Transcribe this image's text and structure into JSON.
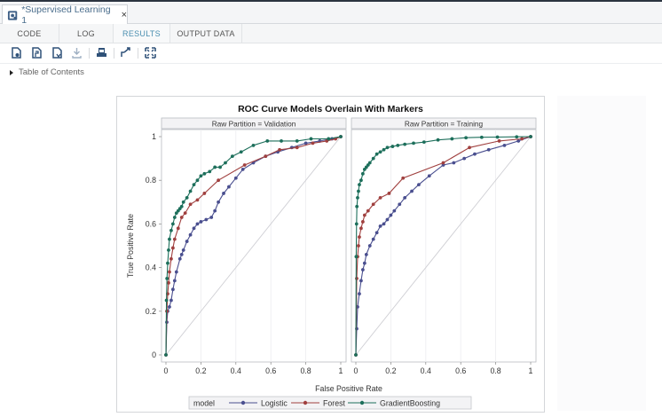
{
  "window": {
    "doc_tab": {
      "title": "*Supervised Learning 1",
      "icon": "flow-document-icon",
      "close": "×"
    }
  },
  "subtabs": [
    {
      "label": "CODE",
      "active": false
    },
    {
      "label": "LOG",
      "active": false
    },
    {
      "label": "RESULTS",
      "active": true
    },
    {
      "label": "OUTPUT DATA",
      "active": false
    }
  ],
  "toolbar": {
    "icons": [
      "download-html-icon",
      "download-pdf-icon",
      "download-word-icon",
      "download-icon",
      "print-icon",
      "expand-link-icon",
      "maximize-icon"
    ]
  },
  "toc": {
    "label": "Table of Contents"
  },
  "colors": {
    "logistic": "#4a4f8f",
    "forest": "#a0403f",
    "gradient_boosting": "#1d6f5b",
    "accent_tab": "#4b8fb0",
    "diagonal": "#cfcfd4"
  },
  "chart_data": {
    "type": "line",
    "title": "ROC Curve Models Overlain With Markers",
    "xlabel": "False Positive Rate",
    "ylabel": "True Positive Rate",
    "xlim": [
      0,
      1
    ],
    "ylim": [
      0,
      1
    ],
    "xticks": [
      "0",
      "0.2",
      "0.4",
      "0.6",
      "0.8",
      "1"
    ],
    "yticks": [
      "0",
      "0.2",
      "0.4",
      "0.6",
      "0.8",
      "1"
    ],
    "grid": "vertical",
    "legend": {
      "title": "model",
      "position": "bottom",
      "entries": [
        "Logistic",
        "Forest",
        "GradientBoosting"
      ]
    },
    "reference_line": {
      "from": [
        0,
        0
      ],
      "to": [
        1,
        1
      ]
    },
    "panels": [
      {
        "header": "Raw Partition = Validation",
        "series": [
          {
            "name": "Logistic",
            "x": [
              0,
              0.005,
              0.01,
              0.02,
              0.03,
              0.04,
              0.05,
              0.06,
              0.08,
              0.09,
              0.1,
              0.12,
              0.14,
              0.16,
              0.18,
              0.2,
              0.23,
              0.26,
              0.28,
              0.3,
              0.33,
              0.36,
              0.4,
              0.44,
              0.5,
              0.57,
              0.64,
              0.72,
              0.8,
              0.88,
              0.95,
              1
            ],
            "y": [
              0,
              0.15,
              0.2,
              0.22,
              0.25,
              0.3,
              0.34,
              0.38,
              0.44,
              0.46,
              0.48,
              0.52,
              0.55,
              0.58,
              0.6,
              0.61,
              0.62,
              0.63,
              0.66,
              0.7,
              0.74,
              0.77,
              0.81,
              0.85,
              0.88,
              0.91,
              0.93,
              0.95,
              0.97,
              0.98,
              0.99,
              1
            ]
          },
          {
            "name": "Forest",
            "x": [
              0,
              0.005,
              0.01,
              0.015,
              0.02,
              0.03,
              0.04,
              0.05,
              0.07,
              0.09,
              0.11,
              0.14,
              0.18,
              0.22,
              0.3,
              0.45,
              0.57,
              0.65,
              0.75,
              0.84,
              0.92,
              0.97,
              1
            ],
            "y": [
              0,
              0.2,
              0.28,
              0.33,
              0.38,
              0.44,
              0.49,
              0.53,
              0.58,
              0.63,
              0.65,
              0.69,
              0.71,
              0.74,
              0.8,
              0.87,
              0.91,
              0.94,
              0.95,
              0.97,
              0.98,
              0.99,
              1
            ]
          },
          {
            "name": "GradientBoosting",
            "x": [
              0,
              0.003,
              0.006,
              0.01,
              0.015,
              0.02,
              0.03,
              0.04,
              0.05,
              0.06,
              0.07,
              0.08,
              0.09,
              0.1,
              0.12,
              0.14,
              0.16,
              0.18,
              0.2,
              0.22,
              0.25,
              0.28,
              0.31,
              0.34,
              0.38,
              0.43,
              0.5,
              0.58,
              0.66,
              0.75,
              0.83,
              0.93,
              1
            ],
            "y": [
              0,
              0.25,
              0.35,
              0.42,
              0.48,
              0.53,
              0.57,
              0.6,
              0.63,
              0.65,
              0.66,
              0.67,
              0.68,
              0.7,
              0.72,
              0.75,
              0.78,
              0.8,
              0.82,
              0.83,
              0.84,
              0.86,
              0.86,
              0.88,
              0.91,
              0.93,
              0.96,
              0.98,
              0.98,
              0.98,
              0.99,
              0.99,
              1
            ]
          }
        ]
      },
      {
        "header": "Raw Partition = Training",
        "series": [
          {
            "name": "Logistic",
            "x": [
              0,
              0.005,
              0.01,
              0.02,
              0.03,
              0.04,
              0.05,
              0.06,
              0.08,
              0.1,
              0.12,
              0.14,
              0.16,
              0.18,
              0.2,
              0.22,
              0.25,
              0.28,
              0.32,
              0.36,
              0.42,
              0.5,
              0.56,
              0.62,
              0.68,
              0.76,
              0.85,
              0.93,
              1
            ],
            "y": [
              0,
              0.12,
              0.22,
              0.28,
              0.34,
              0.39,
              0.42,
              0.46,
              0.5,
              0.53,
              0.56,
              0.59,
              0.6,
              0.62,
              0.64,
              0.66,
              0.69,
              0.72,
              0.75,
              0.78,
              0.82,
              0.87,
              0.88,
              0.9,
              0.92,
              0.94,
              0.96,
              0.98,
              1
            ]
          },
          {
            "name": "Forest",
            "x": [
              0,
              0.005,
              0.01,
              0.015,
              0.02,
              0.03,
              0.04,
              0.05,
              0.07,
              0.1,
              0.14,
              0.19,
              0.27,
              0.5,
              0.65,
              0.82,
              0.95,
              1
            ],
            "y": [
              0,
              0.35,
              0.45,
              0.5,
              0.54,
              0.58,
              0.61,
              0.64,
              0.66,
              0.69,
              0.72,
              0.74,
              0.81,
              0.88,
              0.95,
              0.98,
              0.99,
              1
            ]
          },
          {
            "name": "GradientBoosting",
            "x": [
              0,
              0.002,
              0.004,
              0.006,
              0.01,
              0.015,
              0.02,
              0.03,
              0.04,
              0.05,
              0.06,
              0.07,
              0.08,
              0.1,
              0.12,
              0.14,
              0.16,
              0.18,
              0.21,
              0.24,
              0.28,
              0.33,
              0.39,
              0.47,
              0.55,
              0.63,
              0.72,
              0.81,
              0.92,
              1
            ],
            "y": [
              0,
              0.45,
              0.6,
              0.68,
              0.72,
              0.75,
              0.78,
              0.8,
              0.83,
              0.85,
              0.86,
              0.87,
              0.88,
              0.9,
              0.92,
              0.93,
              0.94,
              0.95,
              0.955,
              0.96,
              0.965,
              0.97,
              0.975,
              0.985,
              0.99,
              0.995,
              0.997,
              0.998,
              0.999,
              1
            ]
          }
        ]
      }
    ]
  }
}
